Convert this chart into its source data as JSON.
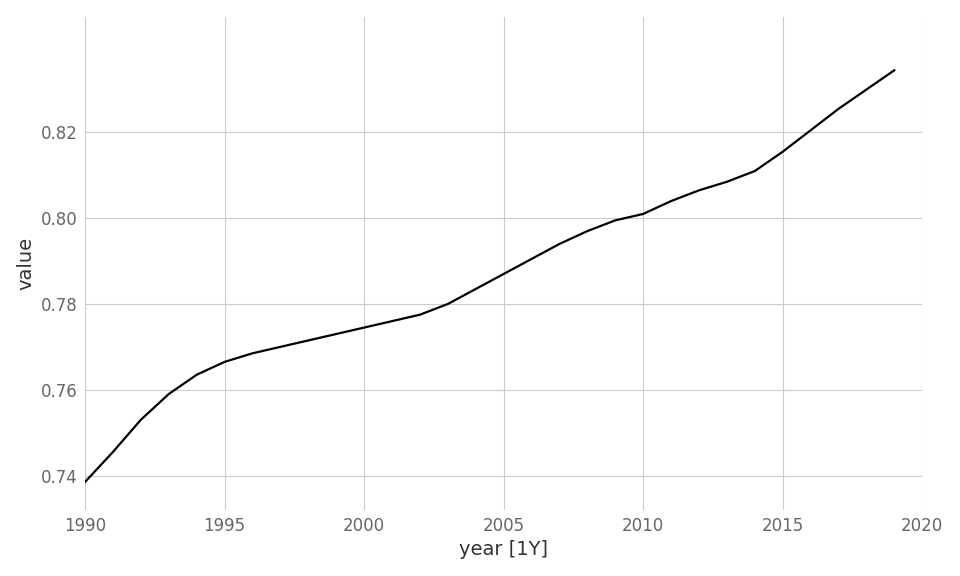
{
  "years": [
    1990,
    1991,
    1992,
    1993,
    1994,
    1995,
    1996,
    1997,
    1998,
    1999,
    2000,
    2001,
    2002,
    2003,
    2004,
    2005,
    2006,
    2007,
    2008,
    2009,
    2010,
    2011,
    2012,
    2013,
    2014,
    2015,
    2016,
    2017,
    2018,
    2019
  ],
  "values": [
    0.7385,
    0.7455,
    0.753,
    0.759,
    0.7635,
    0.7665,
    0.7685,
    0.77,
    0.7715,
    0.773,
    0.7745,
    0.776,
    0.7775,
    0.78,
    0.7835,
    0.787,
    0.7905,
    0.794,
    0.797,
    0.7995,
    0.801,
    0.804,
    0.8065,
    0.8085,
    0.811,
    0.8155,
    0.8205,
    0.8255,
    0.83,
    0.8345
  ],
  "xlabel": "year [1Y]",
  "ylabel": "value",
  "xlim": [
    1990,
    2020
  ],
  "ylim": [
    0.732,
    0.847
  ],
  "yticks": [
    0.74,
    0.76,
    0.78,
    0.8,
    0.82
  ],
  "xticks": [
    1990,
    1995,
    2000,
    2005,
    2010,
    2015,
    2020
  ],
  "xtick_labels": [
    "1990",
    "1995",
    "2000",
    "2005",
    "2010",
    "2015",
    "2020"
  ],
  "line_color": "#000000",
  "line_width": 1.6,
  "background_color": "#ffffff",
  "grid_color": "#cccccc",
  "label_fontsize": 14,
  "tick_fontsize": 12,
  "tick_color": "#666666",
  "label_color": "#333333"
}
